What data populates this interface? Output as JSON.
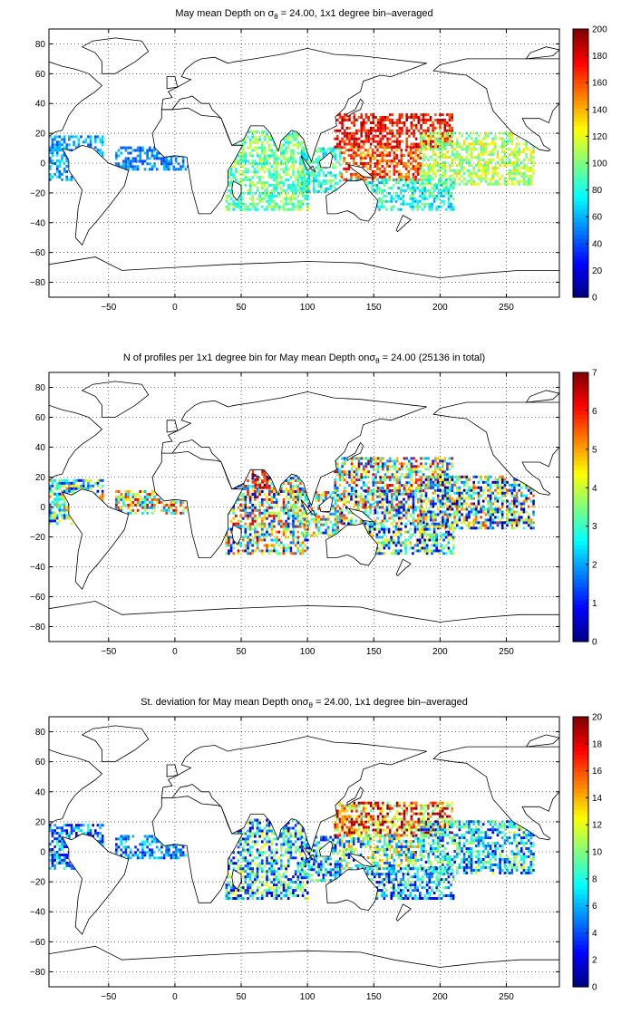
{
  "chart_data": [
    {
      "type": "heatmap",
      "title": {
        "prefix": "May mean Depth on ",
        "symbol": "σ",
        "subscript": "θ",
        "suffix": " = 24.00, 1x1 degree bin–averaged"
      },
      "xlim": [
        -95,
        290
      ],
      "ylim": [
        -90,
        90
      ],
      "xticks": [
        -50,
        0,
        50,
        100,
        150,
        200,
        250
      ],
      "yticks": [
        -80,
        -60,
        -40,
        -20,
        0,
        20,
        40,
        60,
        80
      ],
      "grid": true,
      "colormap": "jet",
      "colorbar": {
        "min": 0,
        "max": 200,
        "ticks": [
          0,
          20,
          40,
          60,
          80,
          100,
          120,
          140,
          160,
          180,
          200
        ]
      },
      "regions": [
        {
          "lon": [
            -95,
            -55
          ],
          "lat": [
            -12,
            18
          ],
          "value": 55,
          "spread": 20
        },
        {
          "lon": [
            -45,
            12
          ],
          "lat": [
            -5,
            10
          ],
          "value": 50,
          "spread": 15
        },
        {
          "lon": [
            38,
            100
          ],
          "lat": [
            -32,
            22
          ],
          "value": 95,
          "spread": 25
        },
        {
          "lon": [
            95,
            125
          ],
          "lat": [
            -20,
            10
          ],
          "value": 85,
          "spread": 25
        },
        {
          "lon": [
            120,
            210
          ],
          "lat": [
            10,
            32
          ],
          "value": 175,
          "spread": 20
        },
        {
          "lon": [
            125,
            185
          ],
          "lat": [
            -12,
            10
          ],
          "value": 160,
          "spread": 25
        },
        {
          "lon": [
            185,
            270
          ],
          "lat": [
            -15,
            20
          ],
          "value": 110,
          "spread": 25
        },
        {
          "lon": [
            130,
            210
          ],
          "lat": [
            -32,
            -12
          ],
          "value": 80,
          "spread": 25
        }
      ]
    },
    {
      "type": "heatmap",
      "title": {
        "prefix": "N of profiles per 1x1 degree bin for May mean Depth on",
        "symbol": "σ",
        "subscript": "θ",
        "suffix": " = 24.00 (25136 in total)"
      },
      "xlim": [
        -95,
        290
      ],
      "ylim": [
        -90,
        90
      ],
      "xticks": [
        -50,
        0,
        50,
        100,
        150,
        200,
        250
      ],
      "yticks": [
        -80,
        -60,
        -40,
        -20,
        0,
        20,
        40,
        60,
        80
      ],
      "grid": true,
      "colormap": "jet",
      "colorbar": {
        "min": 0,
        "max": 7,
        "ticks": [
          0,
          1,
          2,
          3,
          4,
          5,
          6,
          7
        ]
      },
      "regions": [
        {
          "lon": [
            -95,
            -55
          ],
          "lat": [
            -12,
            18
          ],
          "value": 3,
          "spread": 2.5
        },
        {
          "lon": [
            -45,
            12
          ],
          "lat": [
            -5,
            10
          ],
          "value": 4,
          "spread": 2.5
        },
        {
          "lon": [
            38,
            100
          ],
          "lat": [
            -32,
            22
          ],
          "value": 3.5,
          "spread": 3
        },
        {
          "lon": [
            58,
            72
          ],
          "lat": [
            12,
            24
          ],
          "value": 6.5,
          "spread": 1
        },
        {
          "lon": [
            95,
            125
          ],
          "lat": [
            -20,
            10
          ],
          "value": 3.5,
          "spread": 2.5
        },
        {
          "lon": [
            120,
            210
          ],
          "lat": [
            10,
            32
          ],
          "value": 4,
          "spread": 3
        },
        {
          "lon": [
            125,
            185
          ],
          "lat": [
            -12,
            10
          ],
          "value": 3,
          "spread": 3
        },
        {
          "lon": [
            185,
            270
          ],
          "lat": [
            -15,
            20
          ],
          "value": 2.8,
          "spread": 3
        },
        {
          "lon": [
            130,
            210
          ],
          "lat": [
            -32,
            -12
          ],
          "value": 2.5,
          "spread": 2.5
        }
      ]
    },
    {
      "type": "heatmap",
      "title": {
        "prefix": "St. deviation for May mean Depth on",
        "symbol": "σ",
        "subscript": "θ",
        "suffix": " = 24.00, 1x1 degree bin–averaged"
      },
      "xlim": [
        -95,
        290
      ],
      "ylim": [
        -90,
        90
      ],
      "xticks": [
        -50,
        0,
        50,
        100,
        150,
        200,
        250
      ],
      "yticks": [
        -80,
        -60,
        -40,
        -20,
        0,
        20,
        40,
        60,
        80
      ],
      "grid": true,
      "colormap": "jet",
      "colorbar": {
        "min": 0,
        "max": 20,
        "ticks": [
          0,
          2,
          4,
          6,
          8,
          10,
          12,
          14,
          16,
          18,
          20
        ]
      },
      "regions": [
        {
          "lon": [
            -95,
            -55
          ],
          "lat": [
            -12,
            18
          ],
          "value": 5,
          "spread": 4
        },
        {
          "lon": [
            -45,
            12
          ],
          "lat": [
            -5,
            10
          ],
          "value": 5,
          "spread": 3
        },
        {
          "lon": [
            38,
            100
          ],
          "lat": [
            -32,
            22
          ],
          "value": 7,
          "spread": 6
        },
        {
          "lon": [
            95,
            125
          ],
          "lat": [
            -20,
            10
          ],
          "value": 6,
          "spread": 5
        },
        {
          "lon": [
            120,
            210
          ],
          "lat": [
            10,
            32
          ],
          "value": 15,
          "spread": 6
        },
        {
          "lon": [
            125,
            185
          ],
          "lat": [
            -12,
            10
          ],
          "value": 9,
          "spread": 6
        },
        {
          "lon": [
            185,
            270
          ],
          "lat": [
            -15,
            20
          ],
          "value": 7,
          "spread": 5
        },
        {
          "lon": [
            130,
            210
          ],
          "lat": [
            -32,
            -12
          ],
          "value": 6,
          "spread": 5
        }
      ]
    }
  ]
}
